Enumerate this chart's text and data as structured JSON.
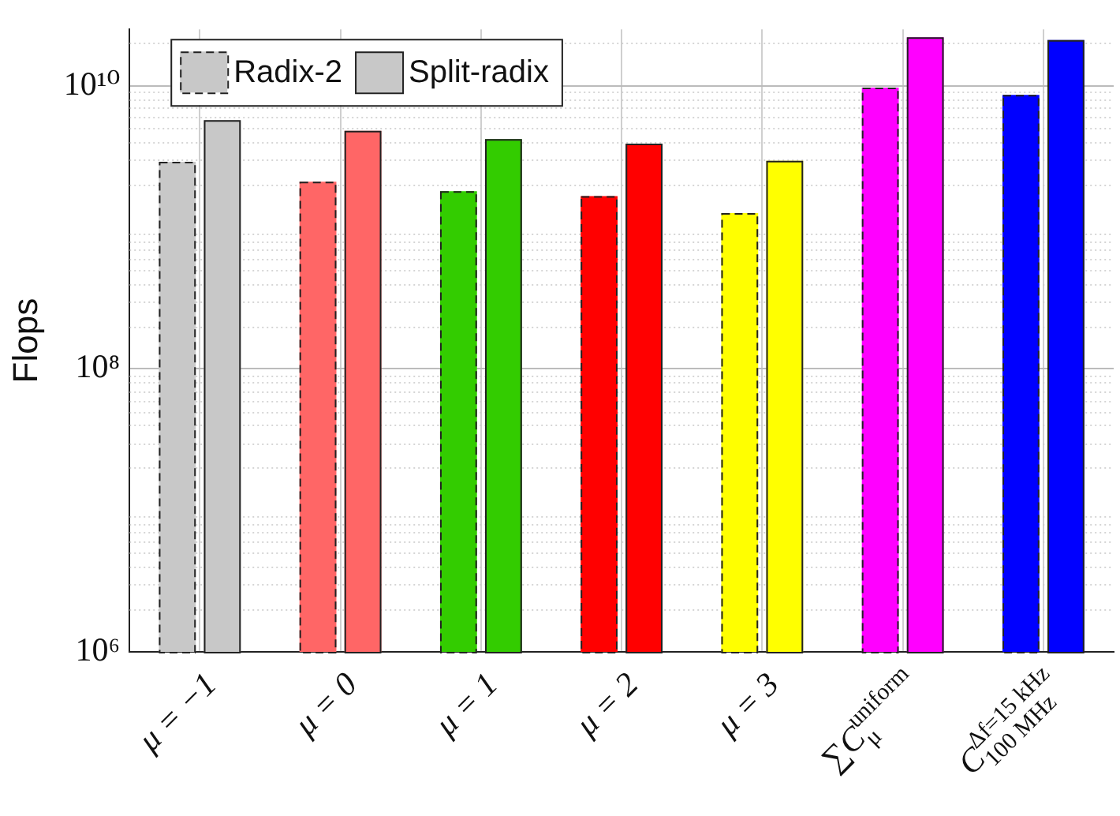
{
  "chart_data": {
    "type": "bar",
    "ylabel": "Flops",
    "categories": [
      "μ = −1",
      "μ = 0",
      "μ = 1",
      "μ = 2",
      "μ = 3",
      "∑C$_{μ}$$^{uniform}$",
      "C$_{100 MHz}$$^{Δf=15 kHz}$"
    ],
    "series": [
      {
        "name": "Radix-2",
        "line_style": "dashed",
        "colors": [
          "#c8c8c8",
          "#ff6666",
          "#33cc00",
          "#ff0000",
          "#ffff00",
          "#ff00ff",
          "#0000ff"
        ],
        "values": [
          2900000000.0,
          2100000000.0,
          1800000000.0,
          1660000000.0,
          1260000000.0,
          9700000000.0,
          8600000000.0
        ]
      },
      {
        "name": "Split-radix",
        "line_style": "solid",
        "colors": [
          "#c8c8c8",
          "#ff6666",
          "#33cc00",
          "#ff0000",
          "#ffff00",
          "#ff00ff",
          "#0000ff"
        ],
        "values": [
          5700000000.0,
          4800000000.0,
          4200000000.0,
          3900000000.0,
          2950000000.0,
          22000000000.0,
          21000000000.0
        ]
      }
    ],
    "log": true,
    "ylim": [
      1000000,
      25000000000
    ],
    "yticks": [
      {
        "value": 1000000,
        "label": "10⁶"
      },
      {
        "value": 100000000,
        "label": "10⁸"
      },
      {
        "value": 10000000000,
        "label": "10¹⁰"
      }
    ],
    "grid": true,
    "legend": "top left"
  }
}
